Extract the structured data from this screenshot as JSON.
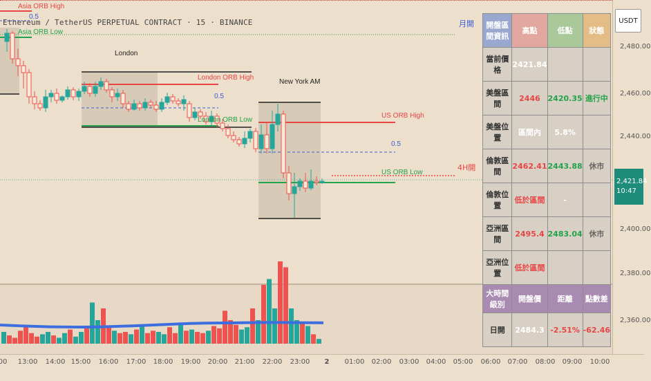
{
  "header": {
    "symbol": "Ethereum / TetherUS PERPETUAL CONTRACT",
    "interval": "15",
    "exchange": "BINANCE",
    "title": "Ethereum / TetherUS PERPETUAL CONTRACT · 15 · BINANCE"
  },
  "price_axis": {
    "currency": "USDT",
    "ticks": [
      "2,480.00",
      "2,460.00",
      "2,440.00",
      "2,420.00",
      "2,400.00",
      "2,380.00",
      "2,360.00"
    ],
    "current_price": "2,421.84",
    "countdown": "10:47"
  },
  "time_axis": {
    "ticks": [
      "00",
      "13:00",
      "14:00",
      "15:00",
      "16:00",
      "17:00",
      "18:00",
      "19:00",
      "20:00",
      "21:00",
      "22:00",
      "23:00",
      "2",
      "01:00",
      "02:00",
      "03:00",
      "04:00",
      "05:00",
      "06:00",
      "07:00",
      "08:00",
      "09:00",
      "10:00"
    ]
  },
  "annotations": {
    "asia_orb_high": "Asia ORB High",
    "asia_half": "0.5",
    "asia_orb_low": "Asia ORB Low",
    "london_session": "London",
    "london_orb_high": "London ORB High",
    "london_half": "0.5",
    "london_orb_low": "London ORB Low",
    "ny_session": "New York AM",
    "us_orb_high": "US ORB High",
    "us_half": "0.5",
    "us_orb_low": "US ORB Low",
    "monthly_open": "月開",
    "h4_open": "4H開"
  },
  "info_table": {
    "header": [
      "開盤區間資訊",
      "高點",
      "低點",
      "狀態"
    ],
    "rows": [
      {
        "label": "當前價格",
        "v1": "2421.84",
        "v2": "",
        "v3": ""
      },
      {
        "label": "美盤區間",
        "v1": "2446",
        "v2": "2420.35",
        "v3": "進行中"
      },
      {
        "label": "美盤位置",
        "v1": "區間內",
        "v2": "5.8%",
        "v3": ""
      },
      {
        "label": "倫敦區間",
        "v1": "2462.41",
        "v2": "2443.88",
        "v3": "休市"
      },
      {
        "label": "倫敦位置",
        "v1": "低於區間",
        "v2": "-",
        "v3": ""
      },
      {
        "label": "亞洲區間",
        "v1": "2495.4",
        "v2": "2483.04",
        "v3": "休市"
      },
      {
        "label": "亞洲位置",
        "v1": "低於區間",
        "v2": "",
        "v3": ""
      }
    ],
    "header2": [
      "大時間級別",
      "開盤價",
      "距離",
      "點數差"
    ],
    "rows2": [
      {
        "label": "日開",
        "v1": "2484.3",
        "v2": "-2.51%",
        "v3": "-62.46"
      }
    ]
  },
  "colors": {
    "bull": "#26a69a",
    "bear": "#ef5350",
    "orb_high": "#e84545",
    "orb_low": "#22a24a",
    "half_line": "#3b5bdb",
    "volume_ma": "#3d6ee0",
    "background": "#ecdfcb"
  }
}
